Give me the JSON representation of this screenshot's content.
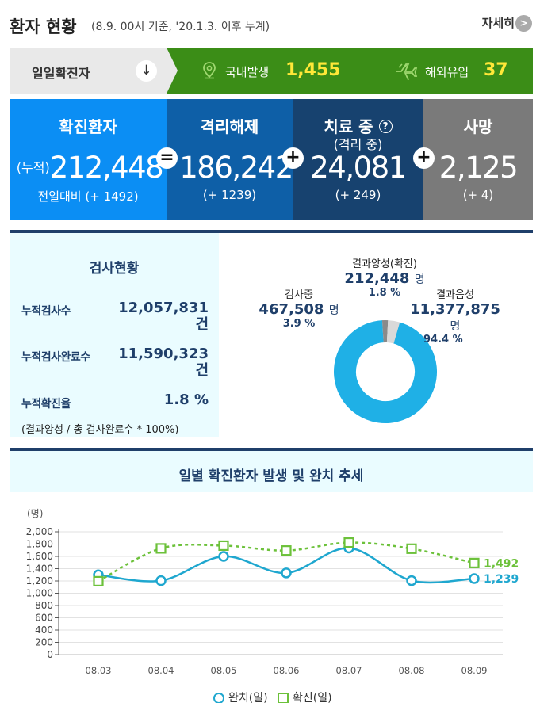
{
  "header": {
    "title": "환자 현황",
    "subtitle": "(8.9. 00시 기준, '20.1.3. 이후 누계)",
    "more_label": "자세히",
    "more_icon": "chevron-right-icon"
  },
  "daily": {
    "label": "일일확진자",
    "arrow_icon": "arrow-down-icon",
    "domestic_label": "국내발생",
    "domestic_value": "1,455",
    "overseas_label": "해외유입",
    "overseas_value": "37"
  },
  "summary": {
    "confirmed": {
      "title": "확진환자",
      "prefix": "(누적)",
      "value": "212,448",
      "delta": "전일대비 (+ 1492)"
    },
    "released": {
      "title": "격리해제",
      "value": "186,242",
      "delta": "(+ 1239)"
    },
    "treating": {
      "title": "치료 중",
      "sub": "(격리 중)",
      "value": "24,081",
      "delta": "(+ 249)"
    },
    "deaths": {
      "title": "사망",
      "value": "2,125",
      "delta": "(+ 4)"
    },
    "ops": [
      "=",
      "+",
      "+"
    ]
  },
  "tests": {
    "title": "검사현황",
    "rows": [
      {
        "label": "누적검사수",
        "value": "12,057,831",
        "unit": "건"
      },
      {
        "label": "누적검사완료수",
        "value": "11,590,323",
        "unit": "건"
      },
      {
        "label": "누적확진율",
        "value": "1.8 %"
      }
    ],
    "note": "(결과양성 / 총 검사완료수 * 100%)",
    "donut": {
      "positive": {
        "name": "결과양성(확진)",
        "value": "212,448",
        "unit": "명",
        "pct": "1.8 %",
        "fraction": 0.018,
        "color": "#8a8a8a"
      },
      "testing": {
        "name": "검사중",
        "value": "467,508",
        "unit": "명",
        "pct": "3.9 %",
        "fraction": 0.039,
        "color": "#d9d9d9"
      },
      "negative": {
        "name": "결과음성",
        "value": "11,377,875",
        "unit": "명",
        "pct": "94.4 %",
        "fraction": 0.944,
        "color": "#1fb0e6"
      }
    }
  },
  "chart_data": {
    "type": "line",
    "title": "일별 확진환자 발생 및 완치 추세",
    "ylabel": "(명)",
    "ylim": [
      0,
      2000
    ],
    "yticks": [
      "0",
      "200",
      "400",
      "600",
      "800",
      "1,000",
      "1,200",
      "1,400",
      "1,600",
      "1,800",
      "2,000"
    ],
    "categories": [
      "08.03",
      "08.04",
      "08.05",
      "08.06",
      "08.07",
      "08.08",
      "08.09"
    ],
    "series": [
      {
        "name": "완치(일)",
        "values": [
          1300,
          1205,
          1600,
          1330,
          1735,
          1205,
          1239
        ],
        "end_label": "1,239",
        "color": "#1fa7cf",
        "marker": "circle"
      },
      {
        "name": "확진(일)",
        "values": [
          1195,
          1730,
          1775,
          1695,
          1825,
          1725,
          1492
        ],
        "end_label": "1,492",
        "color": "#6cc13a",
        "marker": "square"
      }
    ],
    "grid": true,
    "legend": "bottom"
  }
}
